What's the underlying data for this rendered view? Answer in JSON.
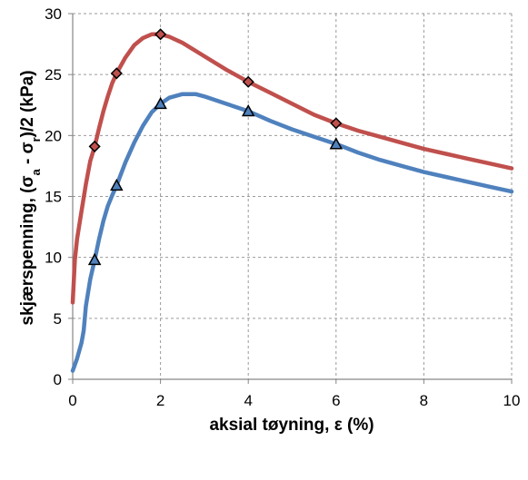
{
  "chart_data": {
    "type": "line",
    "xlabel": "aksial tøyning, ε (%)",
    "ylabel": {
      "prefix": "skjærspenning, (σ",
      "sub_a": "a",
      "mid": " - σ",
      "sub_r": "r",
      "suffix": ")/2 (kPa)"
    },
    "xlim": [
      0,
      10
    ],
    "ylim": [
      0,
      30
    ],
    "x_ticks": [
      0,
      2,
      4,
      6,
      8,
      10
    ],
    "y_ticks": [
      0,
      5,
      10,
      15,
      20,
      25,
      30
    ],
    "grid": true,
    "series": [
      {
        "color": "#c0504d",
        "marker": "diamond",
        "curve": [
          [
            0.0,
            6.3
          ],
          [
            0.05,
            9.8
          ],
          [
            0.1,
            11.5
          ],
          [
            0.2,
            13.8
          ],
          [
            0.3,
            16.0
          ],
          [
            0.4,
            17.9
          ],
          [
            0.5,
            19.1
          ],
          [
            0.6,
            20.6
          ],
          [
            0.7,
            22.0
          ],
          [
            0.8,
            23.2
          ],
          [
            0.9,
            24.3
          ],
          [
            1.0,
            25.1
          ],
          [
            1.2,
            26.4
          ],
          [
            1.4,
            27.4
          ],
          [
            1.6,
            28.0
          ],
          [
            1.8,
            28.3
          ],
          [
            2.0,
            28.3
          ],
          [
            2.2,
            28.1
          ],
          [
            2.5,
            27.6
          ],
          [
            3.0,
            26.5
          ],
          [
            3.5,
            25.4
          ],
          [
            4.0,
            24.4
          ],
          [
            4.5,
            23.5
          ],
          [
            5.0,
            22.6
          ],
          [
            5.5,
            21.7
          ],
          [
            6.0,
            21.0
          ],
          [
            6.5,
            20.4
          ],
          [
            7.0,
            19.9
          ],
          [
            7.5,
            19.4
          ],
          [
            8.0,
            18.9
          ],
          [
            8.5,
            18.5
          ],
          [
            9.0,
            18.1
          ],
          [
            9.5,
            17.7
          ],
          [
            10.0,
            17.3
          ]
        ],
        "markers": [
          [
            0.5,
            19.1
          ],
          [
            1.0,
            25.1
          ],
          [
            2.0,
            28.3
          ],
          [
            4.0,
            24.4
          ],
          [
            6.0,
            21.0
          ]
        ]
      },
      {
        "color": "#4f81bd",
        "marker": "triangle",
        "curve": [
          [
            0.0,
            0.7
          ],
          [
            0.1,
            1.7
          ],
          [
            0.2,
            3.0
          ],
          [
            0.25,
            4.0
          ],
          [
            0.3,
            6.0
          ],
          [
            0.4,
            8.2
          ],
          [
            0.5,
            9.8
          ],
          [
            0.6,
            11.5
          ],
          [
            0.7,
            13.0
          ],
          [
            0.8,
            14.2
          ],
          [
            0.9,
            15.1
          ],
          [
            1.0,
            15.9
          ],
          [
            1.2,
            17.8
          ],
          [
            1.4,
            19.4
          ],
          [
            1.6,
            20.8
          ],
          [
            1.8,
            21.9
          ],
          [
            2.0,
            22.6
          ],
          [
            2.2,
            23.1
          ],
          [
            2.5,
            23.4
          ],
          [
            2.8,
            23.4
          ],
          [
            3.0,
            23.2
          ],
          [
            3.5,
            22.6
          ],
          [
            4.0,
            22.0
          ],
          [
            4.5,
            21.2
          ],
          [
            5.0,
            20.5
          ],
          [
            5.5,
            19.9
          ],
          [
            6.0,
            19.3
          ],
          [
            6.5,
            18.6
          ],
          [
            7.0,
            18.0
          ],
          [
            7.5,
            17.5
          ],
          [
            8.0,
            17.0
          ],
          [
            8.5,
            16.6
          ],
          [
            9.0,
            16.2
          ],
          [
            9.5,
            15.8
          ],
          [
            10.0,
            15.4
          ]
        ],
        "markers": [
          [
            0.5,
            9.8
          ],
          [
            1.0,
            15.9
          ],
          [
            2.0,
            22.6
          ],
          [
            4.0,
            22.0
          ],
          [
            6.0,
            19.3
          ]
        ]
      }
    ]
  }
}
